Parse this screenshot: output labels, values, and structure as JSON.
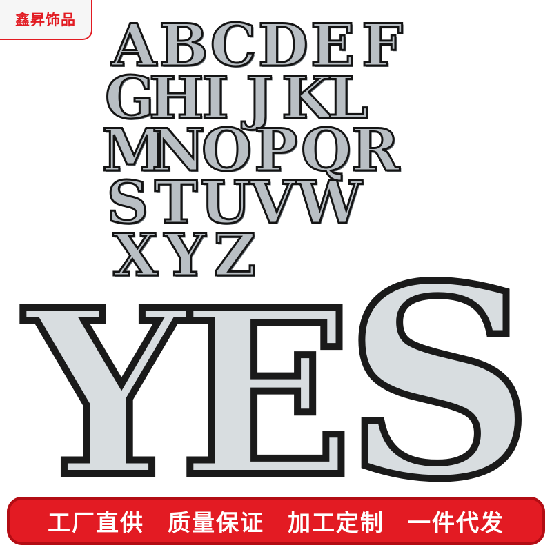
{
  "brand": {
    "label": "鑫昇饰品"
  },
  "alphabet_rows": [
    [
      "A",
      "B",
      "C",
      "D",
      "E",
      "F"
    ],
    [
      "G",
      "H",
      "I",
      "J",
      "K",
      "L"
    ],
    [
      "M",
      "N",
      "O",
      "P",
      "Q",
      "R"
    ],
    [
      "S",
      "T",
      "U",
      "V",
      "W"
    ],
    [
      "X",
      "Y",
      "Z"
    ]
  ],
  "featured_word": [
    "Y",
    "E",
    "S"
  ],
  "banner": {
    "slogans": [
      "工厂直供",
      "质量保证",
      "加工定制",
      "一件代发"
    ]
  },
  "colors": {
    "banner_bg": "#e31b23",
    "brand_text": "#e21b22",
    "patch_border": "#1a1a1a",
    "rhinestone": "#d8dde0"
  }
}
